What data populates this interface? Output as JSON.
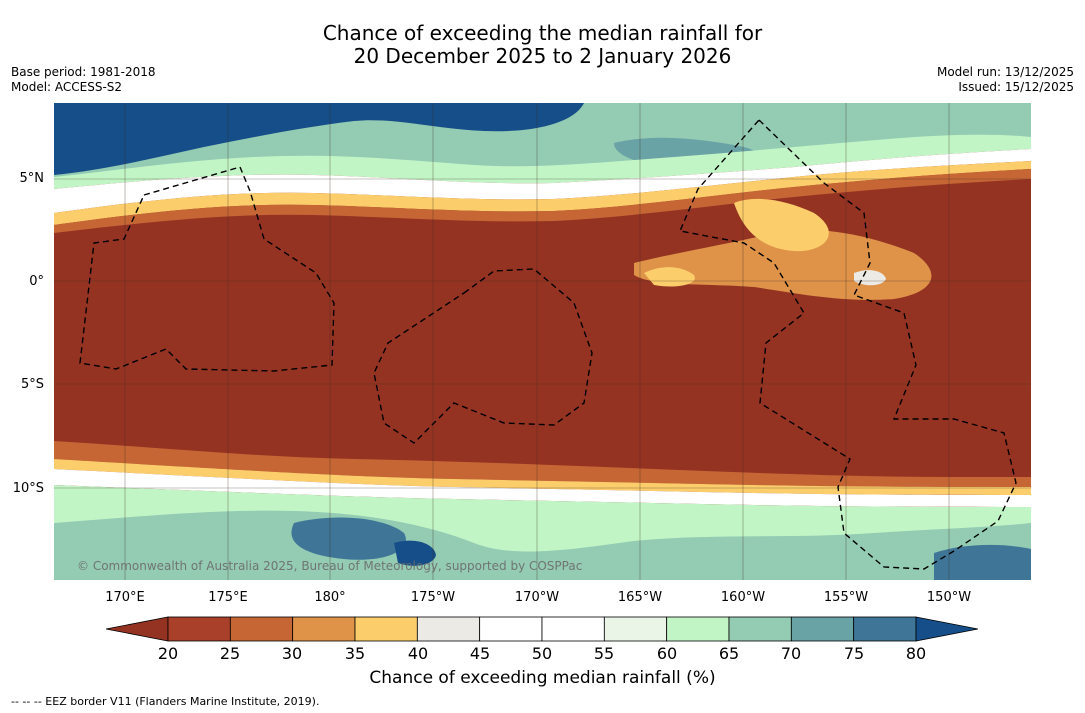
{
  "title": {
    "line1": "Chance of exceeding the median rainfall for",
    "line2": "20 December 2025 to 2 January 2026"
  },
  "meta_left": {
    "base_period": "Base period: 1981-2018",
    "model": "Model: ACCESS-S2"
  },
  "meta_right": {
    "model_run": "Model run: 13/12/2025",
    "issued": "Issued: 15/12/2025"
  },
  "map": {
    "lat_labels": [
      "5°N",
      "0°",
      "5°S",
      "10°S"
    ],
    "lon_labels": [
      "170°E",
      "175°E",
      "180°",
      "175°W",
      "170°W",
      "165°W",
      "160°W",
      "155°W",
      "150°W"
    ],
    "copyright": "© Commonwealth of Australia 2025, Bureau of Meteorology, supported by COSPPac"
  },
  "colorbar": {
    "ticks": [
      "20",
      "25",
      "30",
      "35",
      "40",
      "45",
      "50",
      "55",
      "60",
      "65",
      "70",
      "75",
      "80"
    ],
    "colors": [
      "#a8402a",
      "#c66635",
      "#de9349",
      "#fbcd6b",
      "#eceae4",
      "#ffffff",
      "#ffffff",
      "#eaf5e7",
      "#c2f5c6",
      "#94cbb3",
      "#6aa3a6",
      "#3f7697"
    ],
    "under_color": "#953323",
    "over_color": "#154e88",
    "label": "Chance of exceeding median rainfall (%)"
  },
  "footer": {
    "eez_note": "--  --  -- EEZ border V11 (Flanders Marine Institute, 2019)."
  }
}
